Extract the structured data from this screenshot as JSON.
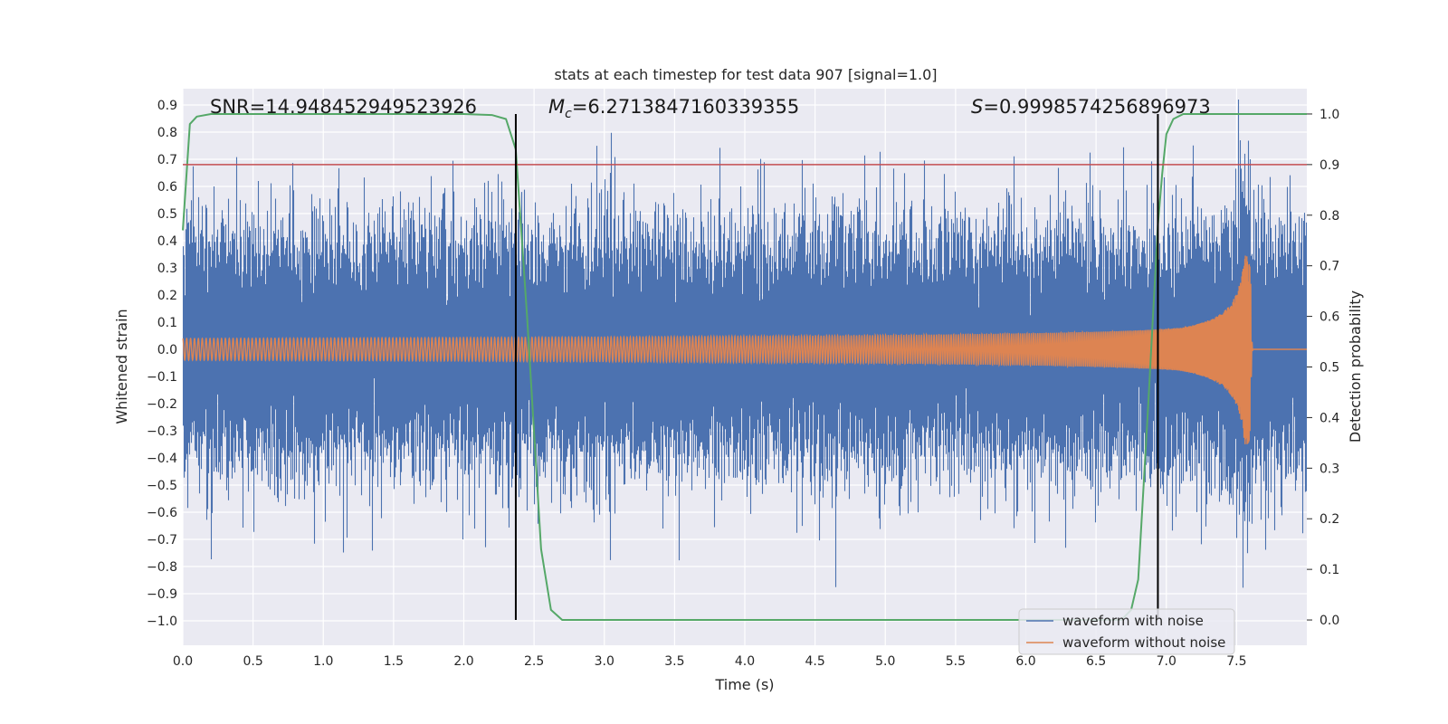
{
  "chart_data": {
    "type": "line",
    "title": "stats at each timestep for test data 907 [signal=1.0]",
    "xlabel": "Time (s)",
    "ylabel": "Whitened strain",
    "y2label": "Detection probability",
    "xlim": [
      0.0,
      8.0
    ],
    "ylim": [
      -1.09,
      0.96
    ],
    "y2lim": [
      -0.05,
      1.05
    ],
    "grid": true,
    "xticks": [
      "0.0",
      "0.5",
      "1.0",
      "1.5",
      "2.0",
      "2.5",
      "3.0",
      "3.5",
      "4.0",
      "4.5",
      "5.0",
      "5.5",
      "6.0",
      "6.5",
      "7.0",
      "7.5"
    ],
    "yticks": [
      "0.9",
      "0.8",
      "0.7",
      "0.6",
      "0.5",
      "0.4",
      "0.3",
      "0.2",
      "0.1",
      "0.0",
      "−0.1",
      "−0.2",
      "−0.3",
      "−0.4",
      "−0.5",
      "−0.6",
      "−0.7",
      "−0.8",
      "−0.9",
      "−1.0"
    ],
    "y2ticks": [
      "1.0",
      "0.9",
      "0.8",
      "0.7",
      "0.6",
      "0.5",
      "0.4",
      "0.3",
      "0.2",
      "0.1",
      "0.0"
    ],
    "annotations": {
      "snr": "SNR=14.948452949523926",
      "mc_symbol": "M",
      "mc_sub": "c",
      "mc_value": "=6.2713847160339355",
      "s_symbol": "S",
      "s_value": "=0.9998574256896973"
    },
    "threshold": 0.9,
    "vlines": [
      2.37,
      6.94
    ],
    "merger_time": 7.6,
    "series": [
      {
        "name": "waveform with noise",
        "color": "#4c72b0",
        "noise_std": 0.2,
        "max_abs": 1.0
      },
      {
        "name": "waveform without noise",
        "color": "#dd8452",
        "amplitude_start": 0.04,
        "amplitude_peak": 0.35
      },
      {
        "name": "detection probability",
        "color": "#55a868",
        "x": [
          0.0,
          0.05,
          0.1,
          0.2,
          0.5,
          1.0,
          1.5,
          2.0,
          2.2,
          2.3,
          2.37,
          2.45,
          2.55,
          2.62,
          2.7,
          3.0,
          4.0,
          5.0,
          6.0,
          6.6,
          6.68,
          6.75,
          6.8,
          6.87,
          6.94,
          6.97,
          7.0,
          7.05,
          7.12,
          7.3,
          8.0
        ],
        "y": [
          0.77,
          0.98,
          0.995,
          1.0,
          1.0,
          1.0,
          1.0,
          1.0,
          0.998,
          0.99,
          0.93,
          0.6,
          0.14,
          0.02,
          0.0,
          0.0,
          0.0,
          0.0,
          0.0,
          0.0,
          0.0,
          0.02,
          0.08,
          0.42,
          0.78,
          0.88,
          0.96,
          0.99,
          1.0,
          1.0,
          1.0
        ]
      }
    ],
    "legend": {
      "location": "lower-right",
      "entries": [
        "waveform with noise",
        "waveform without noise"
      ]
    }
  }
}
